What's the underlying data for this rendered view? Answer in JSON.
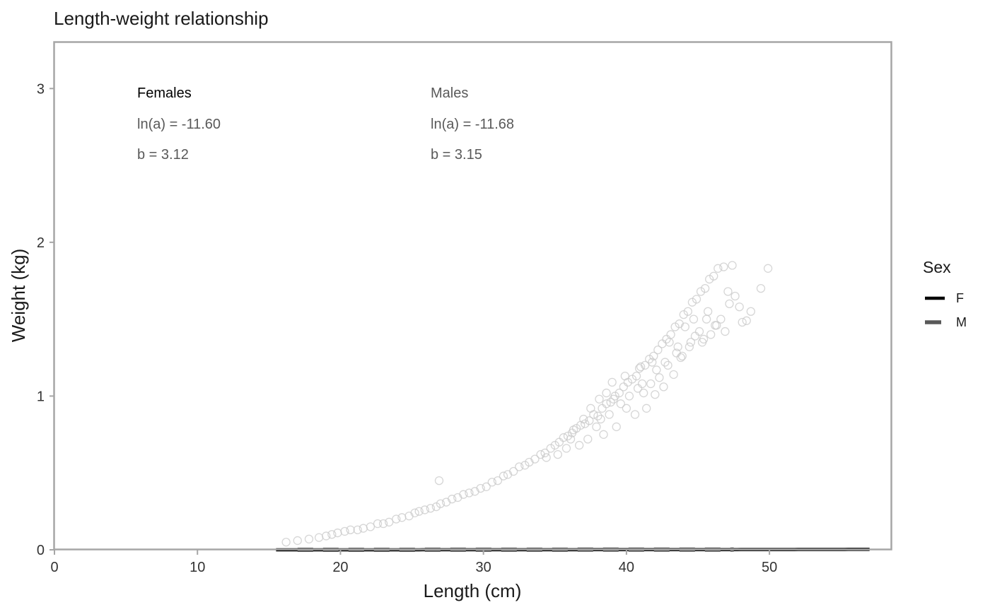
{
  "chart_data": {
    "type": "scatter",
    "title": "Length-weight relationship",
    "xlabel": "Length (cm)",
    "ylabel": "Weight (kg)",
    "xlim": [
      0,
      58.5
    ],
    "ylim": [
      0,
      3.3
    ],
    "x_ticks": [
      0,
      10,
      20,
      30,
      40,
      50
    ],
    "y_ticks": [
      0,
      1,
      2,
      3
    ],
    "grid": false,
    "legend": {
      "title": "Sex",
      "position": "right",
      "entries": [
        {
          "label": "F",
          "color": "#000000",
          "dash": "solid"
        },
        {
          "label": "M",
          "color": "#595959",
          "dash": "dashed"
        }
      ]
    },
    "annotations": {
      "females": {
        "heading": "Females",
        "lna_text": "ln(a) = -11.60",
        "b_text": "b = 3.12"
      },
      "males": {
        "heading": "Males",
        "lna_text": "ln(a) = -11.68",
        "b_text": "b = 3.15"
      }
    },
    "series": [
      {
        "name": "F",
        "kind": "fit-line",
        "ln_a": -11.6,
        "b": 3.12,
        "x_range": [
          15.5,
          57
        ],
        "color": "#000000",
        "style": "solid"
      },
      {
        "name": "M",
        "kind": "fit-line",
        "ln_a": -11.68,
        "b": 3.15,
        "x_range": [
          17,
          47.5
        ],
        "color": "#595959",
        "style": "dashed"
      }
    ],
    "scatter_observations": {
      "x": [
        16.2,
        17.0,
        17.8,
        18.5,
        19.0,
        19.4,
        19.8,
        20.3,
        20.7,
        21.2,
        21.6,
        22.1,
        22.6,
        23.0,
        23.4,
        23.9,
        24.3,
        24.8,
        25.2,
        25.5,
        25.9,
        26.3,
        26.7,
        27.0,
        27.4,
        27.8,
        28.2,
        28.6,
        29.0,
        29.4,
        29.8,
        30.2,
        30.6,
        31.0,
        31.4,
        31.7,
        32.1,
        32.5,
        32.9,
        33.2,
        33.6,
        34.0,
        34.3,
        34.7,
        35.0,
        35.3,
        35.6,
        35.9,
        36.2,
        36.5,
        36.8,
        37.1,
        37.4,
        37.7,
        38.0,
        38.3,
        38.6,
        38.9,
        39.2,
        39.5,
        39.8,
        40.1,
        40.4,
        40.7,
        41.0,
        41.3,
        41.6,
        41.9,
        42.2,
        42.5,
        42.8,
        43.1,
        43.4,
        43.7,
        44.0,
        44.3,
        44.6,
        44.9,
        45.2,
        45.5,
        45.8,
        46.1,
        46.4,
        46.8,
        47.2,
        47.6,
        48.1,
        48.7,
        49.4,
        49.9,
        26.9,
        35.2,
        36.7,
        37.5,
        38.1,
        38.6,
        39.0,
        39.6,
        40.2,
        40.8,
        41.2,
        41.7,
        42.3,
        42.9,
        43.5,
        44.1,
        44.7,
        45.3,
        45.9,
        46.6,
        47.1,
        47.9,
        38.4,
        39.3,
        40.6,
        41.4,
        42.0,
        42.6,
        43.3,
        43.9,
        44.4,
        45.1,
        45.6,
        46.3,
        34.4,
        35.8,
        36.1,
        37.0,
        37.9,
        38.8,
        39.9,
        40.9,
        41.8,
        42.7,
        43.6,
        44.5,
        45.4,
        46.2,
        47.4,
        48.4,
        36.3,
        37.3,
        38.2,
        39.1,
        40.0,
        41.1,
        42.1,
        43.0,
        43.8,
        44.8,
        45.7,
        46.9
      ],
      "y": [
        0.05,
        0.06,
        0.07,
        0.08,
        0.09,
        0.1,
        0.11,
        0.12,
        0.13,
        0.13,
        0.14,
        0.15,
        0.17,
        0.17,
        0.18,
        0.2,
        0.21,
        0.22,
        0.24,
        0.25,
        0.26,
        0.27,
        0.28,
        0.3,
        0.31,
        0.33,
        0.34,
        0.36,
        0.37,
        0.38,
        0.4,
        0.41,
        0.44,
        0.45,
        0.48,
        0.49,
        0.51,
        0.54,
        0.55,
        0.57,
        0.59,
        0.62,
        0.63,
        0.66,
        0.68,
        0.7,
        0.73,
        0.74,
        0.76,
        0.79,
        0.81,
        0.82,
        0.84,
        0.88,
        0.87,
        0.92,
        0.95,
        0.96,
        1.0,
        1.02,
        1.06,
        1.09,
        1.11,
        1.13,
        1.19,
        1.2,
        1.24,
        1.26,
        1.3,
        1.34,
        1.37,
        1.4,
        1.45,
        1.47,
        1.53,
        1.55,
        1.61,
        1.63,
        1.68,
        1.7,
        1.76,
        1.78,
        1.83,
        1.84,
        1.6,
        1.65,
        1.48,
        1.55,
        1.7,
        1.83,
        0.45,
        0.62,
        0.68,
        0.92,
        0.98,
        1.02,
        1.09,
        0.95,
        1.0,
        1.05,
        1.02,
        1.08,
        1.12,
        1.2,
        1.28,
        1.45,
        1.5,
        1.35,
        1.4,
        1.5,
        1.68,
        1.58,
        0.75,
        0.8,
        0.88,
        0.92,
        1.01,
        1.06,
        1.14,
        1.26,
        1.32,
        1.42,
        1.5,
        1.46,
        0.6,
        0.66,
        0.72,
        0.85,
        0.8,
        0.88,
        1.13,
        1.18,
        1.22,
        1.22,
        1.32,
        1.35,
        1.37,
        1.46,
        1.85,
        1.49,
        0.78,
        0.72,
        0.85,
        0.98,
        0.92,
        1.08,
        1.17,
        1.35,
        1.25,
        1.39,
        1.55,
        1.42
      ],
      "marker": "hollow-circle",
      "color": "#c8c8c8"
    }
  }
}
